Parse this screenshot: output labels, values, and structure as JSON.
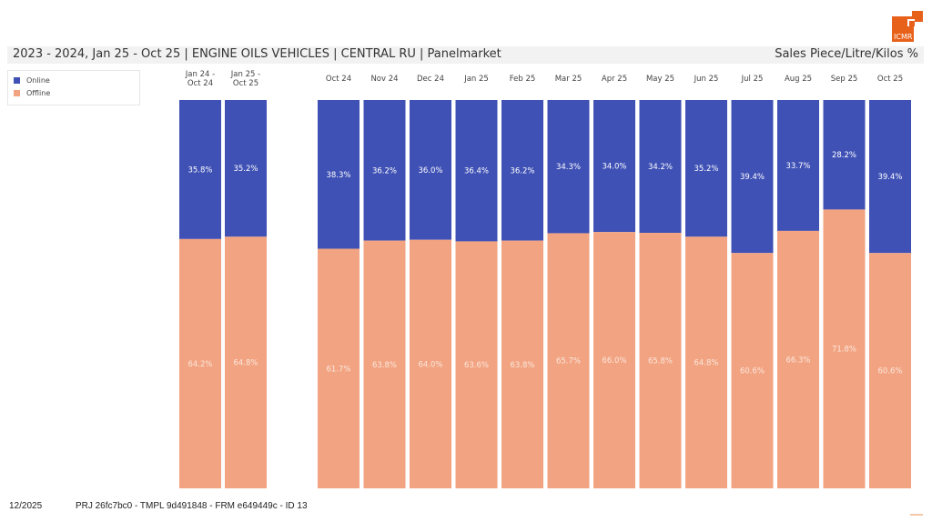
{
  "header": {
    "title": "2023 - 2024, Jan 25 - Oct 25 | ENGINE OILS VEHICLES | CENTRAL RU | Panelmarket",
    "measure": "Sales Piece/Litre/Kilos %",
    "logo_text": "ICMR",
    "logo_color": "#e8611a"
  },
  "footer": {
    "date": "12/2025",
    "ids": "PRJ 26fc7bc0 - TMPL 9d491848 - FRM e649449c - ID 13"
  },
  "colors": {
    "online": "#3f51b5",
    "offline": "#f2a482",
    "label_text": "#ffffff"
  },
  "chart_data": {
    "type": "bar",
    "stacked": true,
    "normalized_percent": true,
    "title": "2023 - 2024, Jan 25 - Oct 25 | ENGINE OILS VEHICLES | CENTRAL RU | Panelmarket",
    "ylabel": "Sales Piece/Litre/Kilos %",
    "xlabel": "",
    "ylim": [
      0,
      100
    ],
    "grid": false,
    "legend_position": "top-left",
    "groups": [
      {
        "name": "period-totals",
        "categories": [
          "Jan 24 - Oct 24",
          "Jan 25 - Oct 25"
        ]
      },
      {
        "name": "monthly",
        "categories": [
          "Oct 24",
          "Nov 24",
          "Dec 24",
          "Jan 25",
          "Feb 25",
          "Mar 25",
          "Apr 25",
          "May 25",
          "Jun 25",
          "Jul 25",
          "Aug 25",
          "Sep 25",
          "Oct 25"
        ]
      }
    ],
    "categories": [
      "Jan 24 - Oct 24",
      "Jan 25 - Oct 25",
      "Oct 24",
      "Nov 24",
      "Dec 24",
      "Jan 25",
      "Feb 25",
      "Mar 25",
      "Apr 25",
      "May 25",
      "Jun 25",
      "Jul 25",
      "Aug 25",
      "Sep 25",
      "Oct 25"
    ],
    "category_lines": [
      [
        "Jan 24 -",
        "Oct 24"
      ],
      [
        "Jan 25 -",
        "Oct 25"
      ],
      [
        "Oct 24"
      ],
      [
        "Nov 24"
      ],
      [
        "Dec 24"
      ],
      [
        "Jan 25"
      ],
      [
        "Feb 25"
      ],
      [
        "Mar 25"
      ],
      [
        "Apr 25"
      ],
      [
        "May 25"
      ],
      [
        "Jun 25"
      ],
      [
        "Jul 25"
      ],
      [
        "Aug 25"
      ],
      [
        "Sep 25"
      ],
      [
        "Oct 25"
      ]
    ],
    "series": [
      {
        "name": "Online",
        "color": "#3f51b5",
        "values": [
          35.8,
          35.2,
          38.3,
          36.2,
          36.0,
          36.4,
          36.2,
          34.3,
          34.0,
          34.2,
          35.2,
          39.4,
          33.7,
          28.2,
          39.4
        ]
      },
      {
        "name": "Offline",
        "color": "#f2a482",
        "values": [
          64.2,
          64.8,
          61.7,
          63.8,
          64.0,
          63.6,
          63.8,
          65.7,
          66.0,
          65.8,
          64.8,
          60.6,
          66.3,
          71.8,
          60.6
        ]
      }
    ],
    "value_format": "{v}%"
  },
  "legend": {
    "items": [
      {
        "label": "Online",
        "color": "#3f51b5"
      },
      {
        "label": "Offline",
        "color": "#f2a482"
      }
    ]
  }
}
